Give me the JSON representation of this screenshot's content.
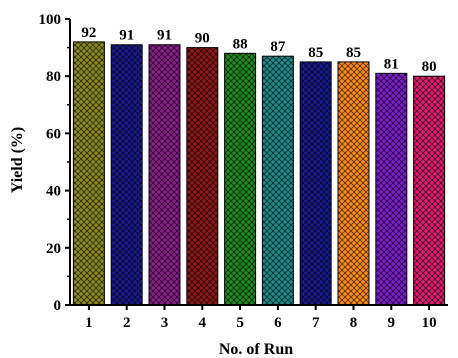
{
  "chart_data": {
    "type": "bar",
    "categories": [
      "1",
      "2",
      "3",
      "4",
      "5",
      "6",
      "7",
      "8",
      "9",
      "10"
    ],
    "values": [
      92,
      91,
      91,
      90,
      88,
      87,
      85,
      85,
      81,
      80
    ],
    "data_labels": [
      "92",
      "91",
      "91",
      "90",
      "88",
      "87",
      "85",
      "85",
      "81",
      "80"
    ],
    "bar_colors": [
      "#8a8a1e",
      "#1a1a8c",
      "#8a1f8a",
      "#8c1a1a",
      "#1f8a1f",
      "#1f8a8a",
      "#1a1a8c",
      "#ff8c1a",
      "#7a1fc8",
      "#e0206e"
    ],
    "fill_pattern": "crosshatch",
    "title": "",
    "xlabel": "No. of Run",
    "ylabel": "Yield (%)",
    "ylim": [
      0,
      100
    ],
    "yticks": [
      "0",
      "20",
      "40",
      "60",
      "80",
      "100"
    ],
    "grid": false,
    "legend": "none"
  }
}
